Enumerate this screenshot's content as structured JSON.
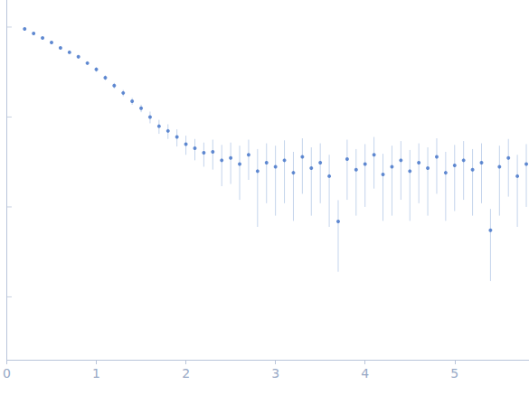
{
  "chart_data": {
    "type": "scatter",
    "x": [
      0.2,
      0.3,
      0.4,
      0.5,
      0.6,
      0.7,
      0.8,
      0.9,
      1.0,
      1.1,
      1.2,
      1.3,
      1.4,
      1.5,
      1.6,
      1.7,
      1.8,
      1.9,
      2.0,
      2.1,
      2.2,
      2.3,
      2.4,
      2.5,
      2.6,
      2.7,
      2.8,
      2.9,
      3.0,
      3.1,
      3.2,
      3.3,
      3.4,
      3.5,
      3.6,
      3.7,
      3.8,
      3.9,
      4.0,
      4.1,
      4.2,
      4.3,
      4.4,
      4.5,
      4.6,
      4.7,
      4.8,
      4.9,
      5.0,
      5.1,
      5.2,
      5.3,
      5.4,
      5.5,
      5.6,
      5.7,
      5.8
    ],
    "values": [
      0.955,
      0.85,
      0.758,
      0.675,
      0.588,
      0.524,
      0.467,
      0.397,
      0.338,
      0.274,
      0.223,
      0.185,
      0.15,
      0.125,
      0.1,
      0.079,
      0.07,
      0.06,
      0.05,
      0.045,
      0.04,
      0.041,
      0.033,
      0.035,
      0.03,
      0.038,
      0.025,
      0.031,
      0.028,
      0.033,
      0.024,
      0.036,
      0.027,
      0.031,
      0.022,
      0.0069,
      0.034,
      0.026,
      0.03,
      0.038,
      0.023,
      0.028,
      0.033,
      0.025,
      0.031,
      0.027,
      0.036,
      0.024,
      0.029,
      0.033,
      0.026,
      0.031,
      0.0055,
      0.028,
      0.035,
      0.022,
      0.03
    ],
    "errors": [
      0.03,
      0.02,
      0.02,
      0.018,
      0.016,
      0.015,
      0.014,
      0.012,
      0.02,
      0.018,
      0.016,
      0.015,
      0.013,
      0.012,
      0.015,
      0.014,
      0.013,
      0.013,
      0.012,
      0.012,
      0.012,
      0.015,
      0.016,
      0.017,
      0.018,
      0.018,
      0.019,
      0.02,
      0.02,
      0.022,
      0.017,
      0.022,
      0.019,
      0.02,
      0.016,
      0.005,
      0.022,
      0.018,
      0.02,
      0.022,
      0.016,
      0.02,
      0.021,
      0.018,
      0.02,
      0.019,
      0.022,
      0.017,
      0.02,
      0.021,
      0.018,
      0.02,
      0.004,
      0.02,
      0.022,
      0.016,
      0.02
    ],
    "xlim": [
      0,
      5.83
    ],
    "xticks": [
      0,
      1,
      2,
      3,
      4,
      5
    ],
    "ylim": [
      0.0002,
      2
    ],
    "yticks": [
      0.001,
      0.01,
      0.1,
      1
    ],
    "log": "y",
    "tick_labels": "x",
    "color": "#3d6fc7"
  }
}
